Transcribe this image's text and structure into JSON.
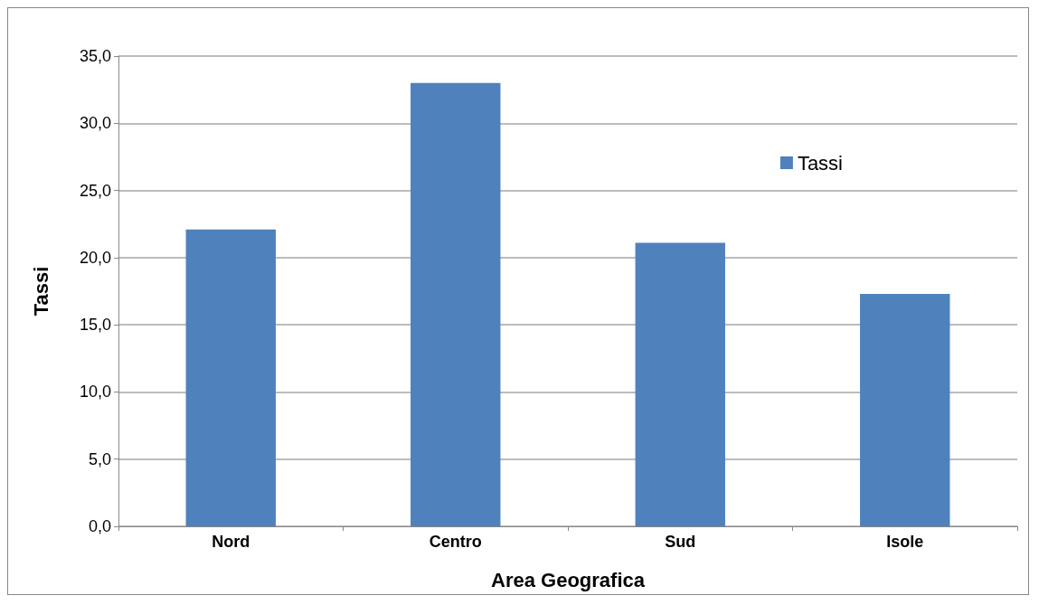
{
  "chart_data": {
    "type": "bar",
    "xlabel": "Area Geografica",
    "ylabel": "Tassi",
    "categories": [
      "Nord",
      "Centro",
      "Sud",
      "Isole"
    ],
    "series": [
      {
        "name": "Tassi",
        "color": "#4f81bd",
        "values": [
          22.1,
          33.0,
          21.1,
          17.3
        ]
      }
    ],
    "ylim": [
      0,
      35
    ],
    "yticks": [
      {
        "value": 0,
        "label": "0,0"
      },
      {
        "value": 5,
        "label": "5,0"
      },
      {
        "value": 10,
        "label": "10,0"
      },
      {
        "value": 15,
        "label": "15,0"
      },
      {
        "value": 20,
        "label": "20,0"
      },
      {
        "value": 25,
        "label": "25,0"
      },
      {
        "value": 30,
        "label": "30,0"
      },
      {
        "value": 35,
        "label": "35,0"
      }
    ],
    "grid": "y",
    "legend": "top right"
  }
}
